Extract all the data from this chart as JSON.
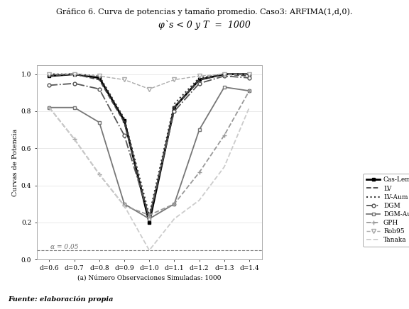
{
  "title_line1": "Gráfico 6. Curva de potencias y tamaño promedio. Caso3: ARFIMA(1,d,0).",
  "title_line2": "φ`s < 0 y T  =  1000",
  "xlabel": "(a) Número Observaciones Simuladas: 1000",
  "ylabel": "Curvas de Potencia",
  "footnote": "Fuente: elaboración propia",
  "alpha_label": "α = 0.05",
  "x_labels": [
    "d=0.6",
    "d=0.7",
    "d=0.8",
    "d=0.9",
    "d=1.0",
    "d=1.1",
    "d=1.2",
    "d=1.3",
    "d=1.4"
  ],
  "x_vals": [
    0.6,
    0.7,
    0.8,
    0.9,
    1.0,
    1.1,
    1.2,
    1.3,
    1.4
  ],
  "series": {
    "Cas-Lem": {
      "values": [
        0.99,
        1.0,
        0.98,
        0.75,
        0.2,
        0.82,
        0.97,
        1.0,
        1.0
      ],
      "color": "#000000",
      "linestyle": "-",
      "linewidth": 2.0,
      "marker": "s",
      "markersize": 3.5,
      "markerfacecolor": "#000000"
    },
    "LV": {
      "values": [
        0.99,
        1.0,
        0.97,
        0.74,
        0.22,
        0.82,
        0.97,
        1.0,
        0.99
      ],
      "color": "#444444",
      "linestyle": "--",
      "linewidth": 1.3,
      "marker": null,
      "markersize": 3,
      "markerfacecolor": "#444444"
    },
    "LV-Aum": {
      "values": [
        1.0,
        1.0,
        0.99,
        0.76,
        0.24,
        0.84,
        0.98,
        1.0,
        1.0
      ],
      "color": "#333333",
      "linestyle": ":",
      "linewidth": 1.5,
      "marker": null,
      "markersize": 3,
      "markerfacecolor": "#333333"
    },
    "DGM": {
      "values": [
        0.94,
        0.95,
        0.92,
        0.67,
        0.23,
        0.8,
        0.95,
        0.99,
        0.98
      ],
      "color": "#555555",
      "linestyle": "-.",
      "linewidth": 1.3,
      "marker": "o",
      "markersize": 3.5,
      "markerfacecolor": "white"
    },
    "DGM-Aum": {
      "values": [
        0.82,
        0.82,
        0.74,
        0.3,
        0.22,
        0.3,
        0.7,
        0.93,
        0.91
      ],
      "color": "#777777",
      "linestyle": "-",
      "linewidth": 1.3,
      "marker": "s",
      "markersize": 3.5,
      "markerfacecolor": "white"
    },
    "GPH": {
      "values": [
        0.82,
        0.65,
        0.46,
        0.29,
        0.24,
        0.3,
        0.47,
        0.67,
        0.91
      ],
      "color": "#999999",
      "linestyle": "--",
      "linewidth": 1.3,
      "marker": "+",
      "markersize": 4,
      "markerfacecolor": "#999999"
    },
    "Rob95": {
      "values": [
        1.0,
        1.0,
        0.99,
        0.97,
        0.92,
        0.97,
        0.99,
        1.0,
        1.0
      ],
      "color": "#aaaaaa",
      "linestyle": "--",
      "linewidth": 1.0,
      "marker": "v",
      "markersize": 4,
      "markerfacecolor": "white"
    },
    "Tanaka": {
      "values": [
        0.82,
        0.65,
        0.46,
        0.29,
        0.05,
        0.22,
        0.32,
        0.5,
        0.82
      ],
      "color": "#cccccc",
      "linestyle": "--",
      "linewidth": 1.3,
      "marker": null,
      "markersize": 3,
      "markerfacecolor": "#cccccc"
    }
  },
  "alpha_line": 0.05,
  "ylim": [
    0.0,
    1.05
  ],
  "yticks": [
    0.0,
    0.2,
    0.4,
    0.6,
    0.8,
    1.0
  ],
  "bg_color": "#ffffff",
  "plot_bg": "#ffffff"
}
